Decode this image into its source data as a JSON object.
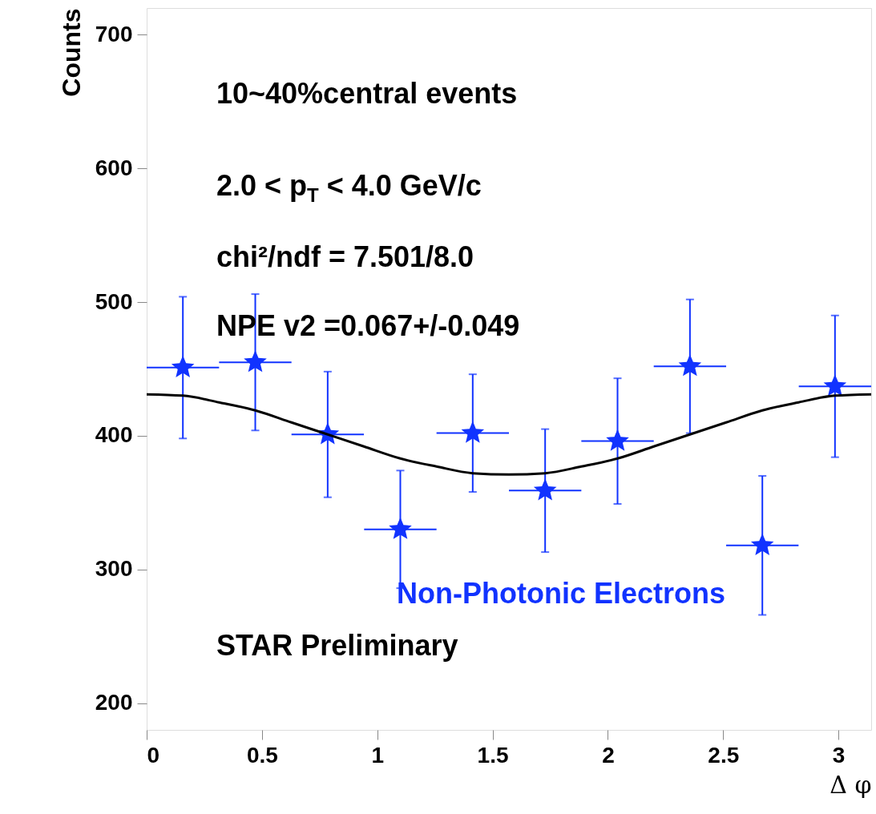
{
  "chart_data": {
    "type": "scatter",
    "xlabel": "Δ φ",
    "ylabel": "Counts",
    "annotations": [
      "10~40%central events",
      "2.0 < p$_{T}$ < 4.0 GeV/c",
      "chi²/ndf = 7.501/8.0",
      "NPE v2 =0.067+/-0.049",
      "STAR Preliminary"
    ],
    "x": [
      0.157,
      0.471,
      0.785,
      1.1,
      1.414,
      1.728,
      2.042,
      2.356,
      2.67,
      2.985
    ],
    "series": [
      {
        "name": "Non-Photonic Electrons",
        "color": "#1133ff",
        "marker": "star",
        "values": [
          451,
          455,
          401,
          330,
          402,
          359,
          396,
          452,
          318,
          437
        ],
        "errors": [
          53,
          51,
          47,
          44,
          44,
          46,
          47,
          50,
          52,
          53
        ],
        "xerrors": [
          0.157,
          0.157,
          0.157,
          0.157,
          0.157,
          0.157,
          0.157,
          0.157,
          0.157,
          0.157
        ]
      },
      {
        "type": "line",
        "color": "#000000",
        "x": [
          0,
          0.157,
          0.314,
          0.471,
          0.628,
          0.785,
          0.942,
          1.1,
          1.257,
          1.414,
          1.571,
          1.728,
          1.885,
          2.042,
          2.199,
          2.356,
          2.513,
          2.67,
          2.827,
          2.985,
          3.142
        ],
        "values": [
          431,
          430,
          425,
          419,
          410,
          401,
          392,
          383,
          377,
          372,
          371,
          372,
          377,
          383,
          392,
          401,
          410,
          419,
          425,
          430,
          431
        ]
      }
    ],
    "xlim": [
      0,
      3.142
    ],
    "xticks": [
      0,
      0.5,
      1,
      1.5,
      2,
      2.5,
      3
    ],
    "ylim": [
      180,
      720
    ],
    "yticks": [
      200,
      300,
      400,
      500,
      600,
      700
    ],
    "grid": false,
    "legend": false
  }
}
